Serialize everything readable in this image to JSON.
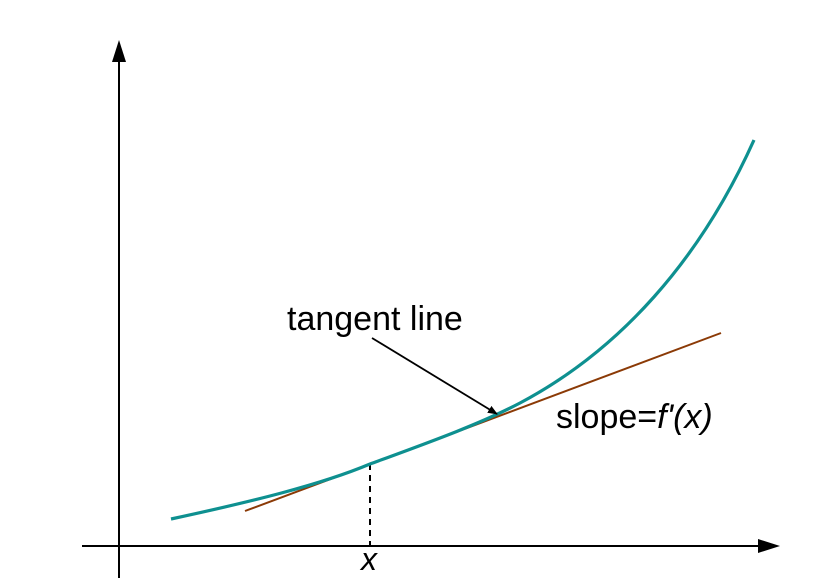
{
  "diagram": {
    "tangent_label": "tangent line",
    "slope_prefix": "slope=",
    "slope_function": "f'(x)",
    "x_label": "x"
  },
  "colors": {
    "curve": "#0e9090",
    "tangent": "#8b3a06",
    "axes": "#000000",
    "background": "#ffffff"
  }
}
